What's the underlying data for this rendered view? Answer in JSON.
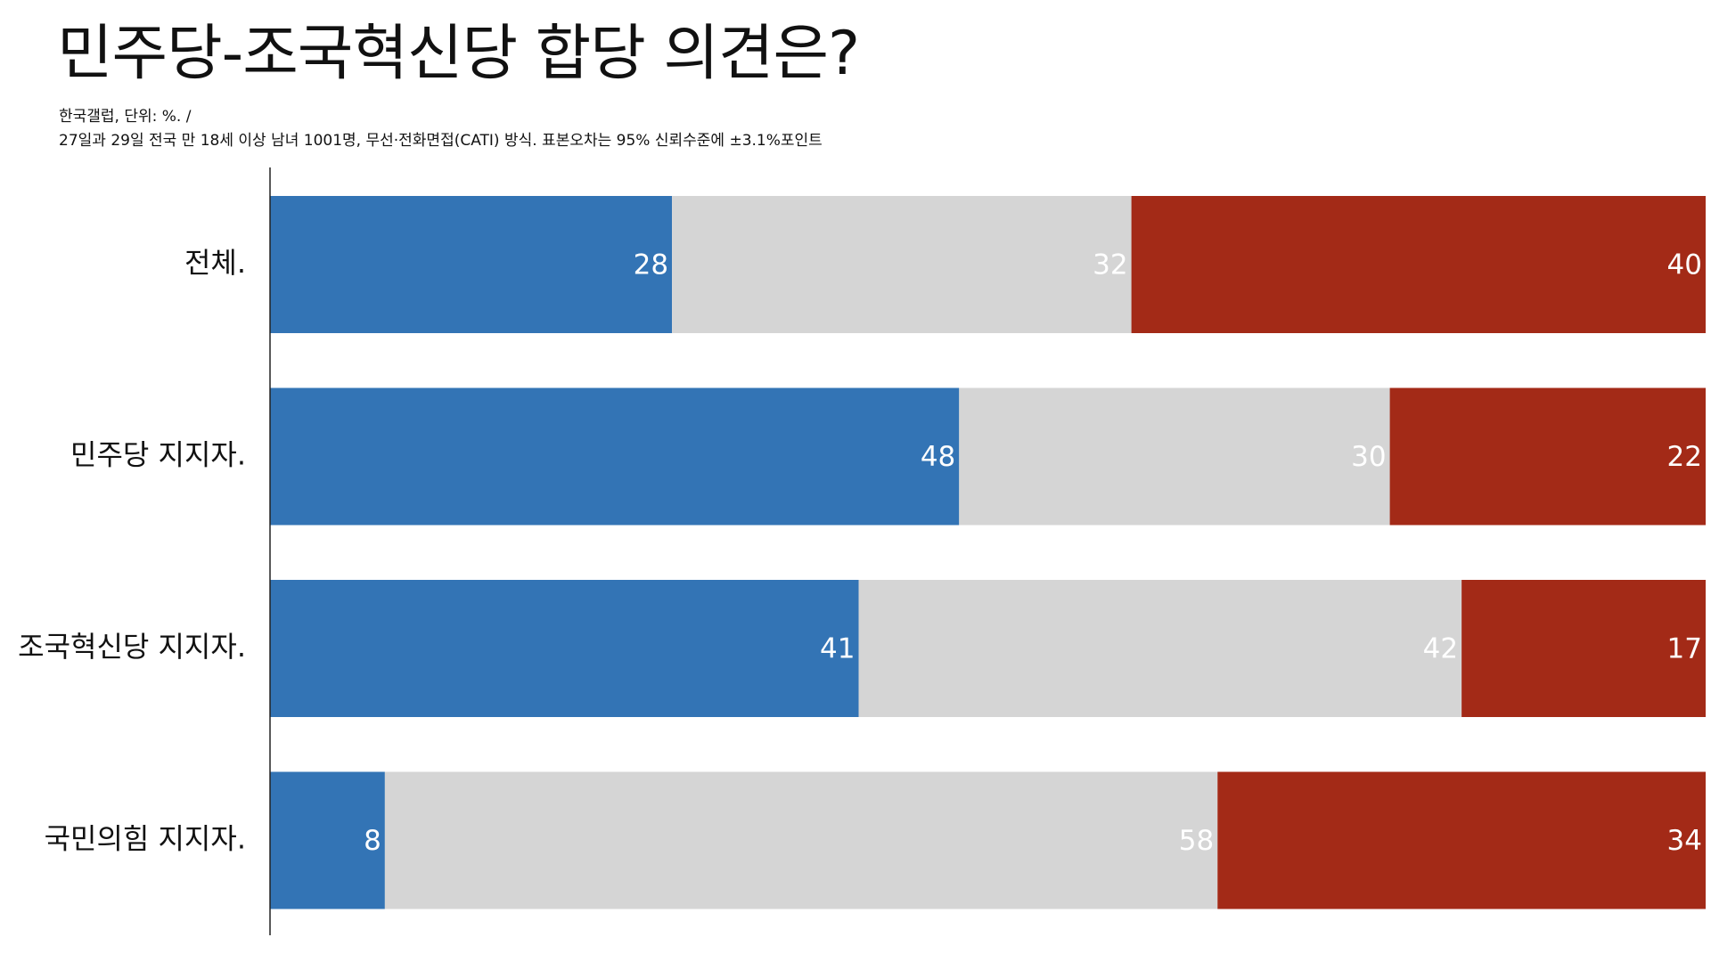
{
  "header": {
    "title": "민주당-조국혁신당 합당 의견은?",
    "subtitle_line1": "한국갤럽, 단위: %. /",
    "subtitle_line2": "27일과 29일 전국 만 18세 이상 남녀 1001명, 무선·전화면접(CATI) 방식. 표본오차는 95% 신뢰수준에 ±3.1%포인트"
  },
  "chart_data": {
    "type": "bar",
    "orientation": "horizontal",
    "stacked": true,
    "title": "민주당-조국혁신당 합당 의견은?",
    "xlabel": "",
    "ylabel": "",
    "xlim": [
      0,
      100
    ],
    "grid": false,
    "legend": "none",
    "categories": [
      "전체.",
      "민주당 지지자.",
      "조국혁신당 지지자.",
      "국민의힘 지지자."
    ],
    "series": [
      {
        "color": "#3374b5",
        "values": [
          28,
          48,
          41,
          8
        ]
      },
      {
        "color": "#d5d5d5",
        "values": [
          32,
          30,
          42,
          58
        ]
      },
      {
        "color": "#a32a17",
        "values": [
          40,
          22,
          17,
          34
        ]
      }
    ]
  }
}
